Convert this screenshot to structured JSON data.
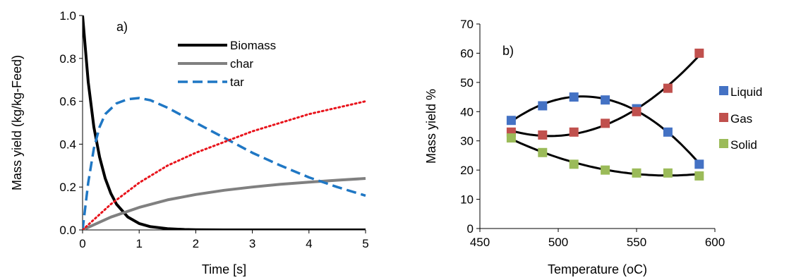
{
  "chart_data": [
    {
      "type": "line",
      "panel_label": "a)",
      "xlabel": "Time [s]",
      "ylabel": "Mass yield (kg/kg-Feed)",
      "xlim": [
        0,
        5
      ],
      "ylim": [
        0,
        1.0
      ],
      "xticks": [
        0,
        1,
        2,
        3,
        4,
        5
      ],
      "xtick_labels": [
        "0",
        "1",
        "2",
        "3",
        "4",
        "5"
      ],
      "yticks": [
        0,
        0.2,
        0.4,
        0.6,
        0.8,
        1.0
      ],
      "ytick_labels": [
        "0.0",
        "0.2",
        "0.4",
        "0.6",
        "0.8",
        "1.0"
      ],
      "grid": false,
      "legend_position": "top-right",
      "series": [
        {
          "name": "Biomass",
          "style": "solid",
          "color": "#000000",
          "x": [
            0,
            0.1,
            0.2,
            0.3,
            0.4,
            0.5,
            0.6,
            0.8,
            1.0,
            1.2,
            1.5,
            1.8,
            2.0,
            2.5,
            3.0,
            4.0,
            5.0
          ],
          "y": [
            1.0,
            0.69,
            0.48,
            0.34,
            0.24,
            0.17,
            0.12,
            0.06,
            0.03,
            0.015,
            0.006,
            0.002,
            0.001,
            0,
            0,
            0,
            0
          ]
        },
        {
          "name": "char",
          "style": "solid",
          "color": "#808080",
          "x": [
            0,
            0.5,
            1.0,
            1.5,
            2.0,
            2.5,
            3.0,
            3.5,
            4.0,
            4.5,
            5.0
          ],
          "y": [
            0,
            0.06,
            0.105,
            0.14,
            0.165,
            0.185,
            0.2,
            0.213,
            0.223,
            0.232,
            0.24
          ]
        },
        {
          "name": "tar",
          "style": "dashed",
          "color": "#1F77C4",
          "x": [
            0,
            0.1,
            0.2,
            0.3,
            0.4,
            0.6,
            0.8,
            1.0,
            1.2,
            1.5,
            2.0,
            2.5,
            3.0,
            3.5,
            4.0,
            4.5,
            5.0
          ],
          "y": [
            0,
            0.22,
            0.38,
            0.48,
            0.54,
            0.59,
            0.61,
            0.615,
            0.605,
            0.57,
            0.5,
            0.43,
            0.36,
            0.3,
            0.245,
            0.2,
            0.16
          ]
        },
        {
          "name": "",
          "style": "dotted",
          "color": "#E8141C",
          "x": [
            0,
            0.5,
            1.0,
            1.5,
            2.0,
            2.5,
            3.0,
            3.5,
            4.0,
            4.5,
            5.0
          ],
          "y": [
            0,
            0.12,
            0.22,
            0.3,
            0.36,
            0.41,
            0.46,
            0.5,
            0.54,
            0.57,
            0.6
          ]
        }
      ]
    },
    {
      "type": "scatter",
      "panel_label": "b)",
      "xlabel": "Temperature (oC)",
      "ylabel": "Mass yield %",
      "xlim": [
        450,
        600
      ],
      "ylim": [
        0,
        70
      ],
      "xticks": [
        450,
        500,
        550,
        600
      ],
      "xtick_labels": [
        "450",
        "500",
        "550",
        "600"
      ],
      "yticks": [
        0,
        10,
        20,
        30,
        40,
        50,
        60,
        70
      ],
      "ytick_labels": [
        "0",
        "10",
        "20",
        "30",
        "40",
        "50",
        "60",
        "70"
      ],
      "grid": false,
      "legend_position": "right",
      "x": [
        470,
        490,
        510,
        530,
        550,
        570,
        590
      ],
      "series": [
        {
          "name": "Liquid",
          "color": "#4472C4",
          "values": [
            37,
            42,
            45,
            44,
            41,
            33,
            22
          ]
        },
        {
          "name": "Gas",
          "color": "#C0504D",
          "values": [
            33,
            32,
            33,
            36,
            40,
            48,
            60
          ]
        },
        {
          "name": "Solid",
          "color": "#9BBB59",
          "values": [
            31,
            26,
            22,
            20,
            19,
            19,
            18
          ]
        }
      ],
      "trendline_color": "#000000"
    }
  ]
}
